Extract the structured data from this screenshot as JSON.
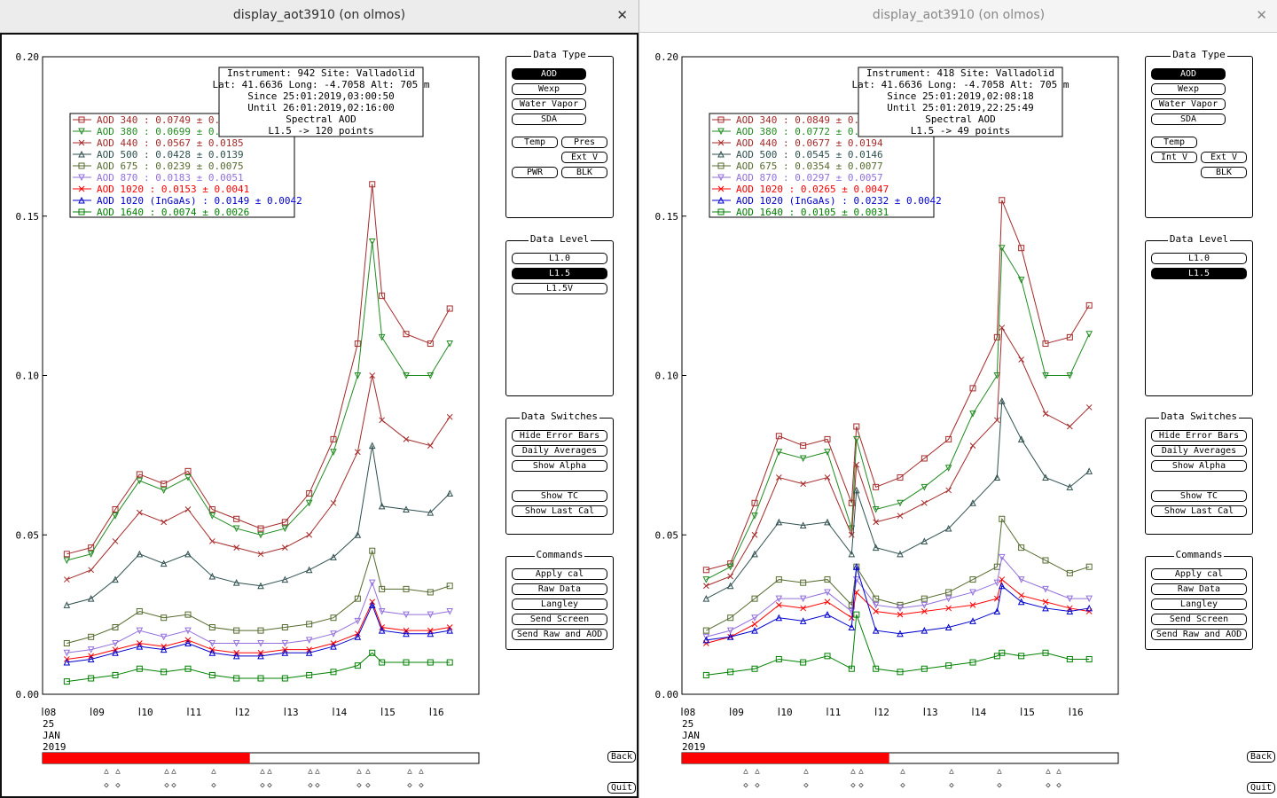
{
  "windows": [
    {
      "title": "display_aot3910 (on olmos)",
      "info": [
        "Instrument: 942 Site: Valladolid",
        "Lat: 41.6636 Long: -4.7058 Alt: 705 m",
        "Since 25:01:2019,03:00:50",
        "Until 26:01:2019,02:16:00",
        "Spectral AOD",
        "L1.5 -> 120 points"
      ],
      "legend": [
        {
          "label": "AOD 340  : 0.0749 ± 0.0",
          "color": "#a52a2a"
        },
        {
          "label": "AOD 380  : 0.0699 ± 0.0",
          "color": "#228b22"
        },
        {
          "label": "AOD 440  : 0.0567 ± 0.0185",
          "color": "#a52a2a"
        },
        {
          "label": "AOD 500  : 0.0428 ± 0.0139",
          "color": "#2f4f4f"
        },
        {
          "label": "AOD 675  : 0.0239 ± 0.0075",
          "color": "#556b2f"
        },
        {
          "label": "AOD 870  : 0.0183 ± 0.0051",
          "color": "#9370db"
        },
        {
          "label": "AOD 1020  : 0.0153 ± 0.0041",
          "color": "#ff0000"
        },
        {
          "label": "AOD 1020 (InGaAs)  : 0.0149 ± 0.0042",
          "color": "#0000cd"
        },
        {
          "label": "AOD 1640  : 0.0074 ± 0.0026",
          "color": "#008000"
        }
      ],
      "data_type": {
        "title": "Data Type",
        "buttons": [
          {
            "label": "AOD",
            "selected": true
          },
          {
            "label": "Wexp",
            "selected": false
          },
          {
            "label": "Water Vapor",
            "selected": false
          },
          {
            "label": "SDA",
            "selected": false
          },
          {
            "label": "Temp",
            "selected": false
          },
          {
            "label": "Pres",
            "selected": false
          },
          {
            "label": "Ext V",
            "selected": false
          },
          {
            "label": "PWR",
            "selected": false
          },
          {
            "label": "BLK",
            "selected": false
          }
        ]
      },
      "data_level": {
        "title": "Data Level",
        "buttons": [
          {
            "label": "L1.0",
            "selected": false
          },
          {
            "label": "L1.5",
            "selected": true
          },
          {
            "label": "L1.5V",
            "selected": false
          }
        ]
      },
      "switches": {
        "title": "Data Switches",
        "buttons": [
          "Hide Error Bars",
          "Daily Averages",
          "Show Alpha",
          "Show TC",
          "Show Last Cal"
        ]
      },
      "commands": {
        "title": "Commands",
        "buttons": [
          "Apply cal",
          "Raw Data",
          "Langley",
          "Send Screen",
          "Send Raw and AOD"
        ]
      },
      "back_label": "Back",
      "quit_label": "Quit",
      "progress_fraction": 0.475
    },
    {
      "title": "display_aot3910 (on olmos)",
      "info": [
        "Instrument: 418 Site: Valladolid",
        "Lat: 41.6636 Long: -4.7058 Alt: 705 m",
        "Since 25:01:2019,02:08:18",
        "Until 25:01:2019,22:25:49",
        "Spectral AOD",
        "L1.5 -> 49 points"
      ],
      "legend": [
        {
          "label": "AOD 340  : 0.0849 ± 0.0",
          "color": "#a52a2a"
        },
        {
          "label": "AOD 380  : 0.0772 ± 0.0",
          "color": "#228b22"
        },
        {
          "label": "AOD 440  : 0.0677 ± 0.0194",
          "color": "#a52a2a"
        },
        {
          "label": "AOD 500  : 0.0545 ± 0.0146",
          "color": "#2f4f4f"
        },
        {
          "label": "AOD 675  : 0.0354 ± 0.0077",
          "color": "#556b2f"
        },
        {
          "label": "AOD 870  : 0.0297 ± 0.0057",
          "color": "#9370db"
        },
        {
          "label": "AOD 1020  : 0.0265 ± 0.0047",
          "color": "#ff0000"
        },
        {
          "label": "AOD 1020 (InGaAs)  : 0.0232 ± 0.0042",
          "color": "#0000cd"
        },
        {
          "label": "AOD 1640  : 0.0105 ± 0.0031",
          "color": "#008000"
        }
      ],
      "data_type": {
        "title": "Data Type",
        "buttons": [
          {
            "label": "AOD",
            "selected": true
          },
          {
            "label": "Wexp",
            "selected": false
          },
          {
            "label": "Water Vapor",
            "selected": false
          },
          {
            "label": "SDA",
            "selected": false
          },
          {
            "label": "Temp",
            "selected": false
          },
          {
            "label": "Int V",
            "selected": false
          },
          {
            "label": "Ext V",
            "selected": false
          },
          {
            "label": "BLK",
            "selected": false
          }
        ]
      },
      "data_level": {
        "title": "Data Level",
        "buttons": [
          {
            "label": "L1.0",
            "selected": false
          },
          {
            "label": "L1.5",
            "selected": true
          }
        ]
      },
      "switches": {
        "title": "Data Switches",
        "buttons": [
          "Hide Error Bars",
          "Daily Averages",
          "Show Alpha",
          "Show TC",
          "Show Last Cal"
        ]
      },
      "commands": {
        "title": "Commands",
        "buttons": [
          "Apply cal",
          "Raw Data",
          "Langley",
          "Send Screen",
          "Send Raw and AOD"
        ]
      },
      "back_label": "Back",
      "quit_label": "Quit",
      "progress_fraction": 0.475
    }
  ],
  "axis": {
    "y_ticks": [
      "0.20",
      "0.15",
      "0.10",
      "0.05",
      "0.00"
    ],
    "x_ticks": [
      "08",
      "09",
      "10",
      "11",
      "12",
      "13",
      "14",
      "15",
      "16"
    ],
    "x_date_lines": [
      "25",
      "JAN",
      "2019"
    ]
  },
  "chart_data": [
    {
      "type": "line",
      "xlabel": "",
      "ylabel": "",
      "ylim": [
        0,
        0.2
      ],
      "xlim": [
        8,
        17
      ],
      "x": [
        8.5,
        9.0,
        9.5,
        10.0,
        10.5,
        11.0,
        11.5,
        12.0,
        12.5,
        13.0,
        13.5,
        14.0,
        14.5,
        14.8,
        15.0,
        15.5,
        16.0,
        16.4
      ],
      "series": [
        {
          "name": "AOD 340",
          "values": [
            0.044,
            0.046,
            0.058,
            0.069,
            0.066,
            0.07,
            0.058,
            0.055,
            0.052,
            0.054,
            0.063,
            0.08,
            0.11,
            0.16,
            0.125,
            0.113,
            0.11,
            0.121
          ]
        },
        {
          "name": "AOD 380",
          "values": [
            0.042,
            0.044,
            0.056,
            0.067,
            0.064,
            0.068,
            0.056,
            0.052,
            0.05,
            0.052,
            0.06,
            0.076,
            0.1,
            0.142,
            0.112,
            0.1,
            0.1,
            0.11
          ]
        },
        {
          "name": "AOD 440",
          "values": [
            0.036,
            0.039,
            0.048,
            0.057,
            0.054,
            0.058,
            0.048,
            0.046,
            0.044,
            0.046,
            0.05,
            0.06,
            0.076,
            0.1,
            0.086,
            0.08,
            0.078,
            0.087
          ]
        },
        {
          "name": "AOD 500",
          "values": [
            0.028,
            0.03,
            0.036,
            0.044,
            0.041,
            0.044,
            0.037,
            0.035,
            0.034,
            0.036,
            0.039,
            0.043,
            0.05,
            0.078,
            0.059,
            0.058,
            0.057,
            0.063
          ]
        },
        {
          "name": "AOD 675",
          "values": [
            0.016,
            0.018,
            0.021,
            0.026,
            0.024,
            0.025,
            0.021,
            0.02,
            0.02,
            0.021,
            0.022,
            0.024,
            0.03,
            0.045,
            0.033,
            0.033,
            0.032,
            0.034
          ]
        },
        {
          "name": "AOD 870",
          "values": [
            0.013,
            0.014,
            0.016,
            0.02,
            0.018,
            0.02,
            0.016,
            0.016,
            0.016,
            0.016,
            0.017,
            0.019,
            0.023,
            0.035,
            0.026,
            0.025,
            0.025,
            0.026
          ]
        },
        {
          "name": "AOD 1020",
          "values": [
            0.011,
            0.012,
            0.014,
            0.016,
            0.015,
            0.017,
            0.014,
            0.013,
            0.013,
            0.014,
            0.014,
            0.016,
            0.019,
            0.029,
            0.021,
            0.02,
            0.02,
            0.021
          ]
        },
        {
          "name": "AOD 1020 (InGaAs)",
          "values": [
            0.01,
            0.011,
            0.013,
            0.015,
            0.014,
            0.016,
            0.013,
            0.012,
            0.012,
            0.013,
            0.013,
            0.015,
            0.018,
            0.028,
            0.02,
            0.019,
            0.019,
            0.02
          ]
        },
        {
          "name": "AOD 1640",
          "values": [
            0.004,
            0.005,
            0.006,
            0.008,
            0.007,
            0.008,
            0.006,
            0.005,
            0.005,
            0.005,
            0.006,
            0.007,
            0.009,
            0.013,
            0.01,
            0.01,
            0.01,
            0.01
          ]
        }
      ]
    },
    {
      "type": "line",
      "xlabel": "",
      "ylabel": "",
      "ylim": [
        0,
        0.2
      ],
      "xlim": [
        8,
        17
      ],
      "x": [
        8.5,
        9.0,
        9.5,
        10.0,
        10.5,
        11.0,
        11.5,
        11.6,
        12.0,
        12.5,
        13.0,
        13.5,
        14.0,
        14.5,
        14.6,
        15.0,
        15.5,
        16.0,
        16.4
      ],
      "series": [
        {
          "name": "AOD 340",
          "values": [
            0.039,
            0.041,
            0.06,
            0.081,
            0.078,
            0.08,
            0.06,
            0.084,
            0.065,
            0.068,
            0.074,
            0.08,
            0.096,
            0.112,
            0.155,
            0.14,
            0.11,
            0.112,
            0.122
          ]
        },
        {
          "name": "AOD 380",
          "values": [
            0.036,
            0.04,
            0.056,
            0.076,
            0.074,
            0.076,
            0.052,
            0.08,
            0.058,
            0.06,
            0.065,
            0.071,
            0.088,
            0.1,
            0.14,
            0.13,
            0.1,
            0.1,
            0.113
          ]
        },
        {
          "name": "AOD 440",
          "values": [
            0.034,
            0.037,
            0.05,
            0.068,
            0.066,
            0.068,
            0.05,
            0.072,
            0.054,
            0.056,
            0.06,
            0.064,
            0.078,
            0.086,
            0.115,
            0.105,
            0.088,
            0.084,
            0.09
          ]
        },
        {
          "name": "AOD 500",
          "values": [
            0.03,
            0.034,
            0.044,
            0.054,
            0.053,
            0.054,
            0.044,
            0.064,
            0.046,
            0.044,
            0.048,
            0.052,
            0.06,
            0.068,
            0.092,
            0.08,
            0.068,
            0.065,
            0.07
          ]
        },
        {
          "name": "AOD 675",
          "values": [
            0.02,
            0.024,
            0.03,
            0.036,
            0.035,
            0.036,
            0.028,
            0.04,
            0.03,
            0.028,
            0.03,
            0.032,
            0.036,
            0.04,
            0.055,
            0.046,
            0.042,
            0.038,
            0.04
          ]
        },
        {
          "name": "AOD 870",
          "values": [
            0.018,
            0.02,
            0.024,
            0.03,
            0.03,
            0.032,
            0.026,
            0.036,
            0.028,
            0.027,
            0.028,
            0.03,
            0.032,
            0.035,
            0.043,
            0.036,
            0.033,
            0.03,
            0.03
          ]
        },
        {
          "name": "AOD 1020",
          "values": [
            0.016,
            0.018,
            0.022,
            0.028,
            0.027,
            0.029,
            0.024,
            0.032,
            0.026,
            0.025,
            0.026,
            0.027,
            0.028,
            0.03,
            0.036,
            0.031,
            0.029,
            0.027,
            0.026
          ]
        },
        {
          "name": "AOD 1020 (InGaAs)",
          "values": [
            0.017,
            0.018,
            0.02,
            0.024,
            0.023,
            0.025,
            0.021,
            0.04,
            0.02,
            0.019,
            0.02,
            0.021,
            0.023,
            0.026,
            0.034,
            0.029,
            0.027,
            0.026,
            0.027
          ]
        },
        {
          "name": "AOD 1640",
          "values": [
            0.006,
            0.007,
            0.008,
            0.011,
            0.01,
            0.012,
            0.008,
            0.025,
            0.008,
            0.007,
            0.008,
            0.009,
            0.01,
            0.012,
            0.013,
            0.012,
            0.013,
            0.011,
            0.011
          ]
        }
      ]
    }
  ]
}
